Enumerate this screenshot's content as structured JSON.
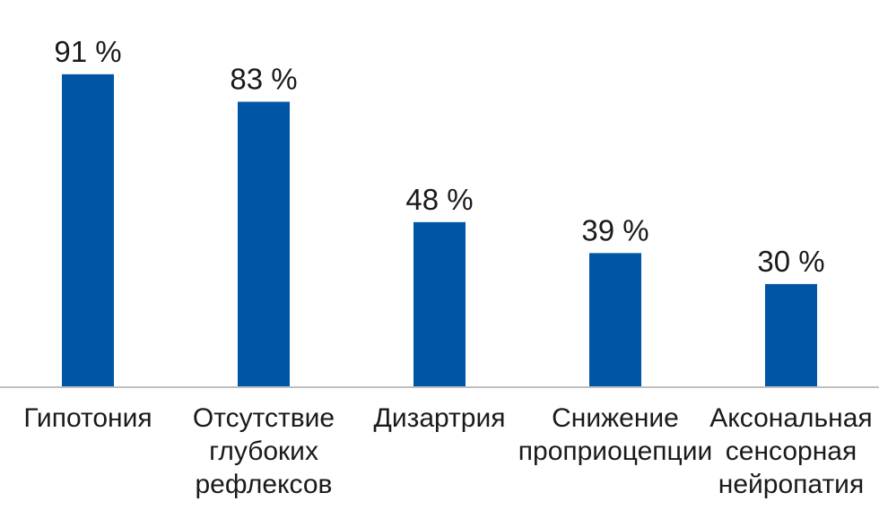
{
  "chart_data": {
    "type": "bar",
    "categories": [
      [
        "Гипотония"
      ],
      [
        "Отсутствие",
        "глубоких",
        "рефлексов"
      ],
      [
        "Дизартрия"
      ],
      [
        "Снижение",
        "проприоцепции"
      ],
      [
        "Аксональная",
        "сенсорная",
        "нейропатия"
      ]
    ],
    "values": [
      91,
      83,
      48,
      39,
      30
    ],
    "value_labels": [
      "91 %",
      "83 %",
      "48 %",
      "39 %",
      "30 %"
    ],
    "ylim": [
      0,
      100
    ],
    "bar_color": "#0055a4",
    "grid": false,
    "legend": false
  }
}
